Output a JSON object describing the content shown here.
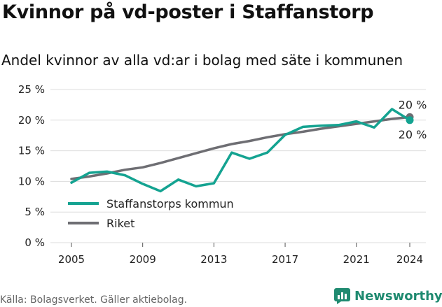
{
  "title": "Kvinnor på vd-poster i Staffanstorp",
  "subtitle": "Andel kvinnor av alla vd:ar i bolag med säte i kommunen",
  "source": "Källa: Bolagsverket. Gäller aktiebolag.",
  "brand": {
    "name": "Newsworthy",
    "color": "#1f8a70"
  },
  "chart_data": {
    "type": "line",
    "title": "Kvinnor på vd-poster i Staffanstorp",
    "subtitle": "Andel kvinnor av alla vd:ar i bolag med säte i kommunen",
    "xlabel": "",
    "ylabel": "",
    "xlim": [
      2005,
      2024
    ],
    "ylim": [
      0,
      25
    ],
    "x_ticks": [
      2005,
      2009,
      2013,
      2017,
      2021,
      2024
    ],
    "y_ticks": [
      0,
      5,
      10,
      15,
      20,
      25
    ],
    "y_tick_labels": [
      "0 %",
      "5 %",
      "10 %",
      "15 %",
      "20 %",
      "25 %"
    ],
    "grid": "horizontal",
    "legend_position": "bottom-left",
    "x": [
      2005,
      2006,
      2007,
      2008,
      2009,
      2010,
      2011,
      2012,
      2013,
      2014,
      2015,
      2016,
      2017,
      2018,
      2019,
      2020,
      2021,
      2022,
      2023,
      2024
    ],
    "series": [
      {
        "name": "Staffanstorps kommun",
        "color": "#14a391",
        "values": [
          9.8,
          11.4,
          11.6,
          11.0,
          9.6,
          8.4,
          10.3,
          9.2,
          9.7,
          14.7,
          13.7,
          14.7,
          17.6,
          18.9,
          19.1,
          19.2,
          19.8,
          18.8,
          21.8,
          20.0
        ],
        "end_label": "20 %"
      },
      {
        "name": "Riket",
        "color": "#6e6e73",
        "values": [
          10.4,
          10.8,
          11.3,
          11.9,
          12.3,
          13.0,
          13.8,
          14.6,
          15.4,
          16.1,
          16.6,
          17.2,
          17.7,
          18.1,
          18.6,
          19.0,
          19.4,
          19.8,
          20.2,
          20.5
        ],
        "end_label": "20 %"
      }
    ]
  }
}
